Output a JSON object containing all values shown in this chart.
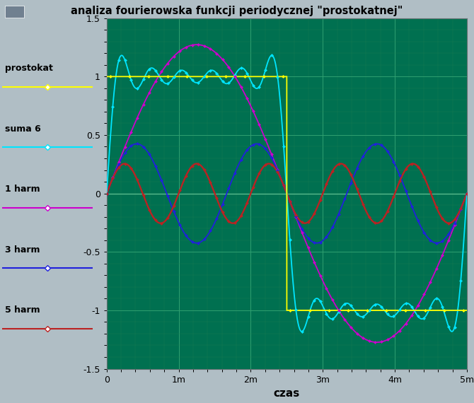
{
  "title": "analiza fourierowska funkcji periodycznej \"prostokatnej\"",
  "xlabel": "czas",
  "xlim": [
    0,
    0.005
  ],
  "ylim": [
    -1.5,
    1.5
  ],
  "xticks": [
    0,
    0.001,
    0.002,
    0.003,
    0.004,
    0.005
  ],
  "xtick_labels": [
    "0",
    "1m",
    "2m",
    "3m",
    "4m",
    "5m"
  ],
  "yticks": [
    -1.5,
    -1.0,
    -0.5,
    0.0,
    0.5,
    1.0,
    1.5
  ],
  "ytick_labels": [
    "-1.5",
    "-1",
    "-0.5",
    "0",
    "0.5",
    "1",
    "1.5"
  ],
  "plot_bg": "#007050",
  "fig_bg": "#b0bec5",
  "title_bar_color": "#add8e6",
  "period": 0.005,
  "colors": {
    "prostokat": "#ffff00",
    "suma6": "#00e5ff",
    "harm1": "#cc00cc",
    "harm3": "#2020dd",
    "harm5": "#bb2222"
  },
  "legend_entries": [
    {
      "label": "prostokat",
      "color": "#ffff00",
      "marker": "D"
    },
    {
      "label": "suma 6",
      "color": "#00e5ff",
      "marker": "D"
    },
    {
      "label": "1 harm",
      "color": "#cc00cc",
      "marker": "D"
    },
    {
      "label": "3 harm",
      "color": "#2020dd",
      "marker": "D"
    },
    {
      "label": "5 harm",
      "color": "#bb2222",
      "marker": "D"
    }
  ]
}
